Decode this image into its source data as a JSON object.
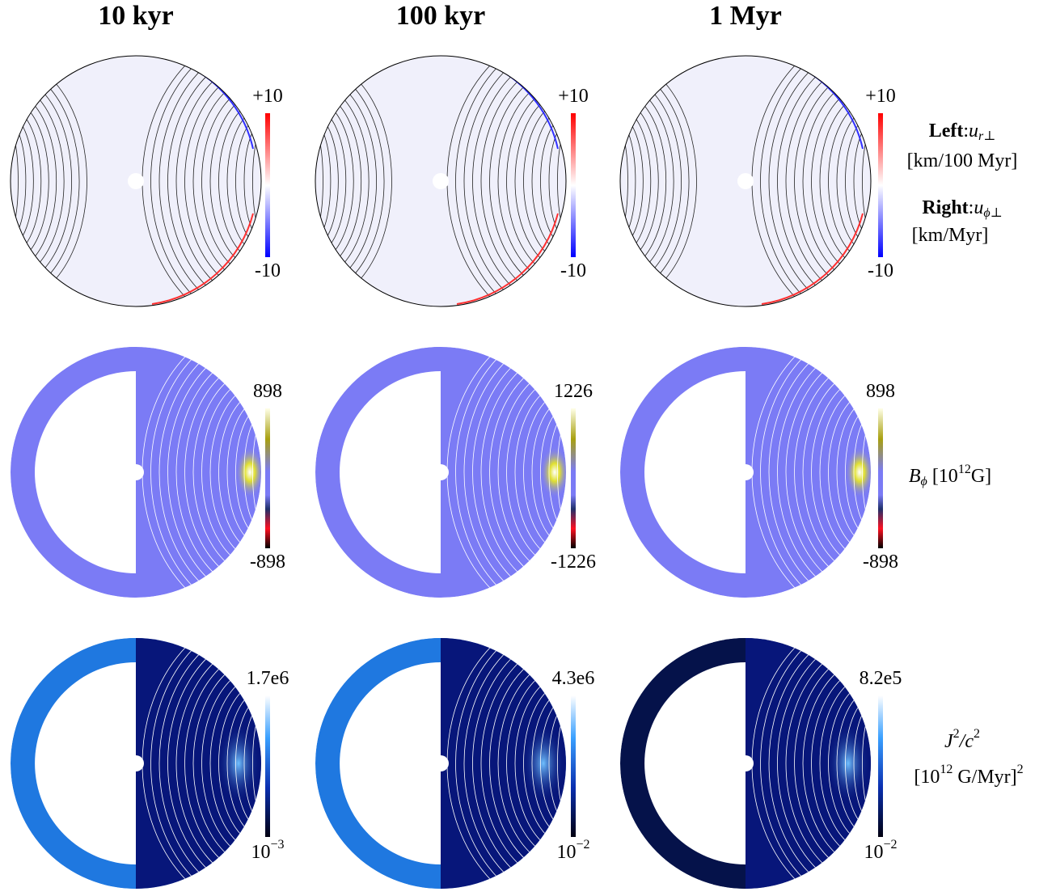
{
  "columns": [
    {
      "title": "10 kyr"
    },
    {
      "title": "100 kyr"
    },
    {
      "title": "1 Myr"
    }
  ],
  "rows": [
    {
      "colorbars": [
        {
          "max": "+10",
          "min": "-10"
        },
        {
          "max": "+10",
          "min": "-10"
        },
        {
          "max": "+10",
          "min": "-10"
        }
      ],
      "legend": {
        "left_label": "Left",
        "separator": ":",
        "left_symbol": "u",
        "left_subscript": "r⊥",
        "left_unit": "[km/100 Myr]",
        "right_label": "Right",
        "right_symbol": "u",
        "right_subscript": "ϕ⊥",
        "right_unit": "[km/Myr]"
      }
    },
    {
      "colorbars": [
        {
          "max": "898",
          "min": "-898"
        },
        {
          "max": "1226",
          "min": "-1226"
        },
        {
          "max": "898",
          "min": "-898"
        }
      ],
      "legend": {
        "symbol": "B",
        "subscript": "ϕ",
        "unit_open": "[10",
        "unit_exponent": "12",
        "unit_close": "G]"
      }
    },
    {
      "colorbars": [
        {
          "max": "1.7e6",
          "min_base": "10",
          "min_exponent": "−3"
        },
        {
          "max": "4.3e6",
          "min_base": "10",
          "min_exponent": "−2"
        },
        {
          "max": "8.2e5",
          "min_base": "10",
          "min_exponent": "−2"
        }
      ],
      "legend": {
        "symbol": "J",
        "exponent": "2",
        "divider": "/c",
        "divider_exponent": "2",
        "unit_open": "[10",
        "unit_exponent": "12",
        "unit_close": " G/Myr]",
        "unit_power": "2"
      }
    }
  ]
}
